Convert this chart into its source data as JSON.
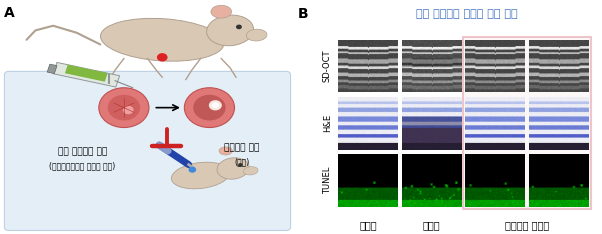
{
  "fig_width": 6.02,
  "fig_height": 2.34,
  "dpi": 100,
  "bg_color": "#ffffff",
  "panel_A_label": "A",
  "panel_B_label": "B",
  "panel_B_title": "건성 황반변성 마우스 모델 실험",
  "panel_B_title_color": "#4472C4",
  "panel_B_title_fontsize": 8.0,
  "row_labels": [
    "SD-OCT",
    "H&E",
    "TUNEL"
  ],
  "col_labels": [
    "정상군",
    "대조군",
    "펩타이드 투여군"
  ],
  "col_label_fontsize": 7,
  "row_label_fontsize": 6.0,
  "panel_A_text1": "건성 황반변성 유도",
  "panel_A_text2": "(요오드산나트륨 복강내 주사)",
  "panel_A_text3": "펩타이드 처리",
  "panel_A_text4": "(점안)",
  "panel_A_text_fontsize": 6.5,
  "panel_A_label_fontsize": 10,
  "panel_B_label_fontsize": 10,
  "mouse_body_color": "#D8C8B4",
  "mouse_edge_color": "#B0A090",
  "eye_color": "#E07878",
  "eye_edge_color": "#C05050",
  "syringe_color": "#D0D0D0",
  "syringe_needle_color": "#909090",
  "inhibit_color": "#CC2222",
  "dropper_color": "#2244AA",
  "drop_color": "#4488DD",
  "box_face_color": "#D8E8F4",
  "box_edge_color": "#A8C0D8",
  "highlight_border_color": "#D06070",
  "highlight_face_color": "#F8ECED"
}
